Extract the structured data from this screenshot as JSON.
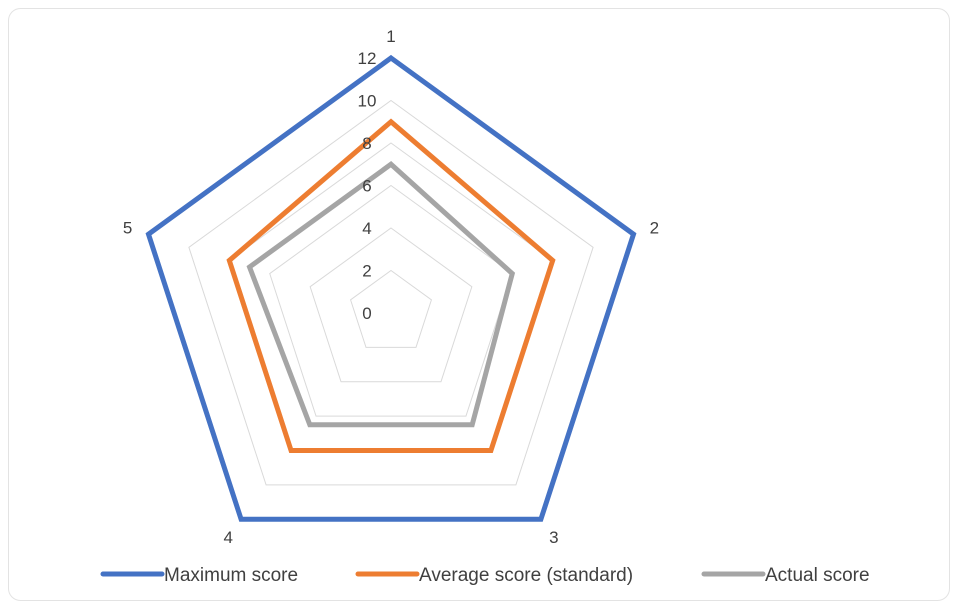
{
  "chart_data": {
    "type": "radar",
    "categories": [
      "1",
      "2",
      "3",
      "4",
      "5"
    ],
    "series": [
      {
        "name": "Maximum score",
        "color": "#4472C4",
        "values": [
          12,
          12,
          12,
          12,
          12
        ]
      },
      {
        "name": "Average score (standard)",
        "color": "#ED7D31",
        "values": [
          9,
          8,
          8,
          8,
          8
        ]
      },
      {
        "name": "Actual score",
        "color": "#A5A5A5",
        "values": [
          7,
          6,
          6.5,
          6.5,
          7
        ]
      }
    ],
    "radial_ticks": [
      "0",
      "2",
      "4",
      "6",
      "8",
      "10",
      "12"
    ],
    "rlim": [
      0,
      12
    ],
    "grid": true,
    "legend": "bottom",
    "title": ""
  }
}
